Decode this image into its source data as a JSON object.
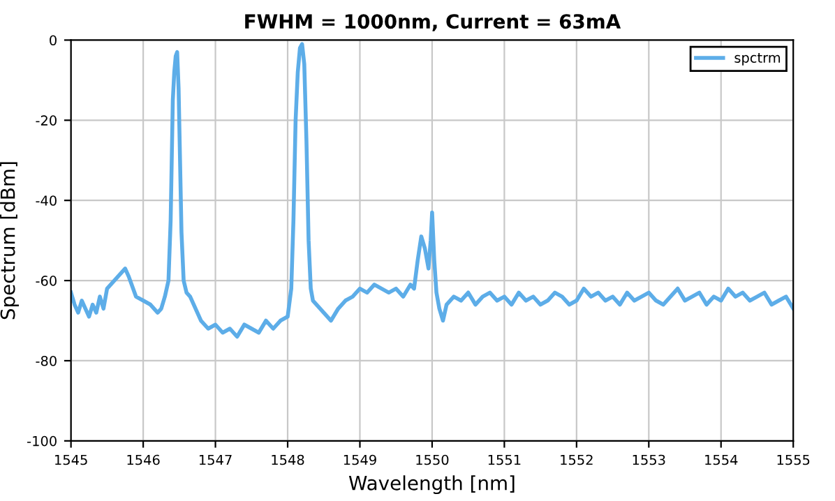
{
  "chart_data": {
    "type": "line",
    "title": "FWHM = 1000nm, Current = 63mA",
    "xlabel": "Wavelength [nm]",
    "ylabel": "Spectrum [dBm]",
    "xlim": [
      1545,
      1555
    ],
    "xticks": [
      1545,
      1546,
      1547,
      1548,
      1549,
      1550,
      1551,
      1552,
      1553,
      1554,
      1555
    ],
    "ylim": [
      -100,
      0
    ],
    "yticks": [
      -100,
      -80,
      -60,
      -40,
      -20,
      0
    ],
    "grid": true,
    "legend": "top right",
    "marker": "none",
    "line_style": "solid",
    "series": [
      {
        "name": "spctrm",
        "color": "#5dade8",
        "x": [
          1545.0,
          1545.05,
          1545.1,
          1545.15,
          1545.2,
          1545.25,
          1545.3,
          1545.35,
          1545.4,
          1545.45,
          1545.5,
          1545.6,
          1545.7,
          1545.75,
          1545.8,
          1545.9,
          1546.0,
          1546.1,
          1546.2,
          1546.25,
          1546.3,
          1546.35,
          1546.38,
          1546.41,
          1546.43,
          1546.45,
          1546.47,
          1546.49,
          1546.51,
          1546.53,
          1546.56,
          1546.6,
          1546.65,
          1546.7,
          1546.8,
          1546.9,
          1547.0,
          1547.1,
          1547.2,
          1547.3,
          1547.4,
          1547.5,
          1547.6,
          1547.7,
          1547.8,
          1547.9,
          1548.0,
          1548.05,
          1548.08,
          1548.11,
          1548.14,
          1548.17,
          1548.2,
          1548.23,
          1548.26,
          1548.29,
          1548.32,
          1548.35,
          1548.4,
          1548.5,
          1548.6,
          1548.7,
          1548.8,
          1548.9,
          1549.0,
          1549.1,
          1549.2,
          1549.3,
          1549.4,
          1549.5,
          1549.6,
          1549.7,
          1549.75,
          1549.8,
          1549.85,
          1549.9,
          1549.95,
          1549.98,
          1550.0,
          1550.03,
          1550.06,
          1550.1,
          1550.15,
          1550.2,
          1550.3,
          1550.4,
          1550.5,
          1550.6,
          1550.7,
          1550.8,
          1550.9,
          1551.0,
          1551.1,
          1551.2,
          1551.3,
          1551.4,
          1551.5,
          1551.6,
          1551.7,
          1551.8,
          1551.9,
          1552.0,
          1552.1,
          1552.2,
          1552.3,
          1552.4,
          1552.5,
          1552.6,
          1552.7,
          1552.8,
          1552.9,
          1553.0,
          1553.1,
          1553.2,
          1553.3,
          1553.4,
          1553.5,
          1553.6,
          1553.7,
          1553.8,
          1553.9,
          1554.0,
          1554.1,
          1554.2,
          1554.3,
          1554.4,
          1554.5,
          1554.6,
          1554.7,
          1554.8,
          1554.9,
          1555.0
        ],
        "values": [
          -63,
          -66,
          -68,
          -65,
          -67,
          -69,
          -66,
          -68,
          -64,
          -67,
          -62,
          -60,
          -58,
          -57,
          -59,
          -64,
          -65,
          -66,
          -68,
          -67,
          -64,
          -60,
          -45,
          -15,
          -8,
          -4,
          -3,
          -12,
          -30,
          -48,
          -60,
          -63,
          -64,
          -66,
          -70,
          -72,
          -71,
          -73,
          -72,
          -74,
          -71,
          -72,
          -73,
          -70,
          -72,
          -70,
          -69,
          -62,
          -45,
          -20,
          -8,
          -2,
          -1,
          -6,
          -25,
          -50,
          -62,
          -65,
          -66,
          -68,
          -70,
          -67,
          -65,
          -64,
          -62,
          -63,
          -61,
          -62,
          -63,
          -62,
          -64,
          -61,
          -62,
          -55,
          -49,
          -52,
          -57,
          -50,
          -43,
          -55,
          -63,
          -67,
          -70,
          -66,
          -64,
          -65,
          -63,
          -66,
          -64,
          -63,
          -65,
          -64,
          -66,
          -63,
          -65,
          -64,
          -66,
          -65,
          -63,
          -64,
          -66,
          -65,
          -62,
          -64,
          -63,
          -65,
          -64,
          -66,
          -63,
          -65,
          -64,
          -63,
          -65,
          -66,
          -64,
          -62,
          -65,
          -64,
          -63,
          -66,
          -64,
          -65,
          -62,
          -64,
          -63,
          -65,
          -64,
          -63,
          -66,
          -65,
          -64,
          -67
        ]
      }
    ]
  }
}
